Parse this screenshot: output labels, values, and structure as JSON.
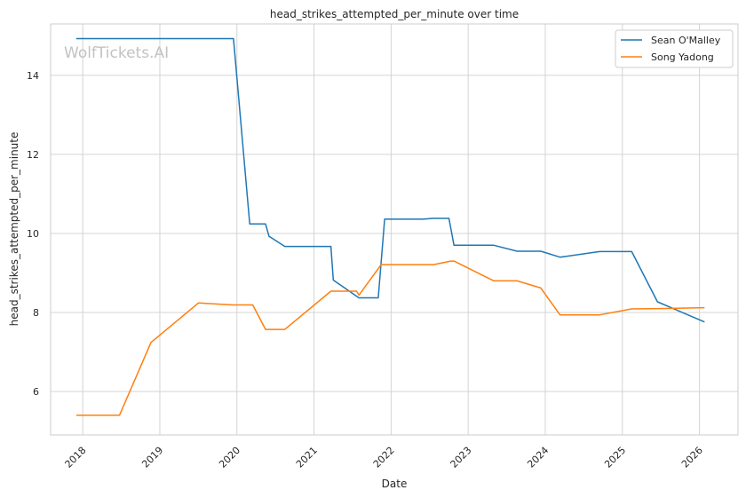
{
  "watermark": "WolfTickets.AI",
  "chart_data": {
    "type": "line",
    "title": "head_strikes_attempted_per_minute over time",
    "xlabel": "Date",
    "ylabel": "head_strikes_attempted_per_minute",
    "xlim": [
      "2017-08-01",
      "2026-07-01"
    ],
    "ylim": [
      4.9,
      15.3
    ],
    "x_ticks": [
      "2018",
      "2019",
      "2020",
      "2021",
      "2022",
      "2023",
      "2024",
      "2025",
      "2026"
    ],
    "y_ticks": [
      6,
      8,
      10,
      12,
      14
    ],
    "grid": true,
    "legend_position": "top-right",
    "series": [
      {
        "name": "Sean O'Malley",
        "color": "#1f77b4",
        "points": [
          [
            "2017-12-01",
            14.93
          ],
          [
            "2019-12-15",
            14.93
          ],
          [
            "2020-03-01",
            10.24
          ],
          [
            "2020-05-15",
            10.24
          ],
          [
            "2020-06-01",
            9.93
          ],
          [
            "2020-08-15",
            9.67
          ],
          [
            "2021-03-20",
            9.67
          ],
          [
            "2021-04-01",
            8.82
          ],
          [
            "2021-07-31",
            8.37
          ],
          [
            "2021-11-01",
            8.37
          ],
          [
            "2021-12-01",
            10.36
          ],
          [
            "2022-06-01",
            10.36
          ],
          [
            "2022-07-15",
            10.38
          ],
          [
            "2022-10-01",
            10.38
          ],
          [
            "2022-10-25",
            9.7
          ],
          [
            "2023-05-01",
            9.7
          ],
          [
            "2023-08-20",
            9.55
          ],
          [
            "2023-12-10",
            9.55
          ],
          [
            "2024-03-10",
            9.4
          ],
          [
            "2024-09-15",
            9.54
          ],
          [
            "2025-02-15",
            9.54
          ],
          [
            "2025-06-15",
            8.27
          ],
          [
            "2026-01-25",
            7.76
          ]
        ]
      },
      {
        "name": "Song Yadong",
        "color": "#ff7f0e",
        "points": [
          [
            "2017-12-01",
            5.4
          ],
          [
            "2018-06-23",
            5.4
          ],
          [
            "2018-11-20",
            7.24
          ],
          [
            "2019-07-01",
            8.24
          ],
          [
            "2019-12-10",
            8.19
          ],
          [
            "2020-03-15",
            8.19
          ],
          [
            "2020-05-15",
            7.57
          ],
          [
            "2020-08-15",
            7.57
          ],
          [
            "2021-03-20",
            8.54
          ],
          [
            "2021-07-20",
            8.54
          ],
          [
            "2021-08-01",
            8.44
          ],
          [
            "2021-11-15",
            9.21
          ],
          [
            "2022-07-20",
            9.21
          ],
          [
            "2022-10-10",
            9.3
          ],
          [
            "2022-10-25",
            9.3
          ],
          [
            "2023-05-01",
            8.8
          ],
          [
            "2023-08-20",
            8.8
          ],
          [
            "2023-12-10",
            8.62
          ],
          [
            "2024-03-10",
            7.94
          ],
          [
            "2024-09-15",
            7.94
          ],
          [
            "2025-02-15",
            8.09
          ],
          [
            "2025-08-01",
            8.1
          ],
          [
            "2026-01-25",
            8.12
          ]
        ]
      }
    ]
  }
}
